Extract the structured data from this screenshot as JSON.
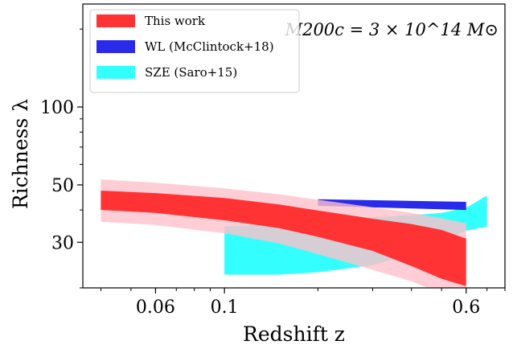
{
  "chart_data": {
    "type": "area",
    "title": "",
    "xlabel": "Redshift z",
    "ylabel": "Richness λ",
    "xscale": "log",
    "yscale": "log",
    "xlim": [
      0.035,
      0.8
    ],
    "ylim": [
      20,
      250
    ],
    "xticks": [
      {
        "value": 0.06,
        "label": "0.06"
      },
      {
        "value": 0.1,
        "label": "0.1"
      },
      {
        "value": 0.6,
        "label": "0.6"
      }
    ],
    "yticks": [
      {
        "value": 30,
        "label": "30"
      },
      {
        "value": 50,
        "label": "50"
      },
      {
        "value": 100,
        "label": "100"
      }
    ],
    "annotation": "M200c = 3 × 10^14 M⊙",
    "legend_position": "top-left",
    "grid": false,
    "series": [
      {
        "name": "This work",
        "color": "#ff3333",
        "x": [
          0.04,
          0.06,
          0.1,
          0.15,
          0.2,
          0.3,
          0.4,
          0.5,
          0.6
        ],
        "lower": [
          40,
          39,
          36.5,
          34,
          31.5,
          27.8,
          24.3,
          21.7,
          20.3
        ],
        "upper": [
          47.5,
          46.5,
          44.5,
          42,
          39.8,
          37,
          35.3,
          33.5,
          31
        ],
        "outer_band_color": "#ffc0cb",
        "outer_lower": [
          36,
          35,
          32.5,
          29.7,
          27,
          23.5,
          21.2,
          19,
          17.8
        ],
        "outer_upper": [
          52.5,
          51,
          48.5,
          46,
          43.8,
          41,
          39,
          37.2,
          35.5
        ]
      },
      {
        "name": "WL (McClintock+18)",
        "color": "#2a2aeb",
        "x": [
          0.2,
          0.6
        ],
        "lower": [
          41.5,
          40
        ],
        "upper": [
          44,
          43
        ]
      },
      {
        "name": "SZE (Saro+15)",
        "color": "#33ffff",
        "x": [
          0.1,
          0.15,
          0.2,
          0.3,
          0.4,
          0.5,
          0.6,
          0.7
        ],
        "lower": [
          22.5,
          22.5,
          23,
          24.5,
          27,
          30.2,
          33.3,
          34.5
        ],
        "upper": [
          34.5,
          35.2,
          36,
          37.5,
          38.2,
          39,
          40.8,
          45.5
        ]
      }
    ]
  }
}
